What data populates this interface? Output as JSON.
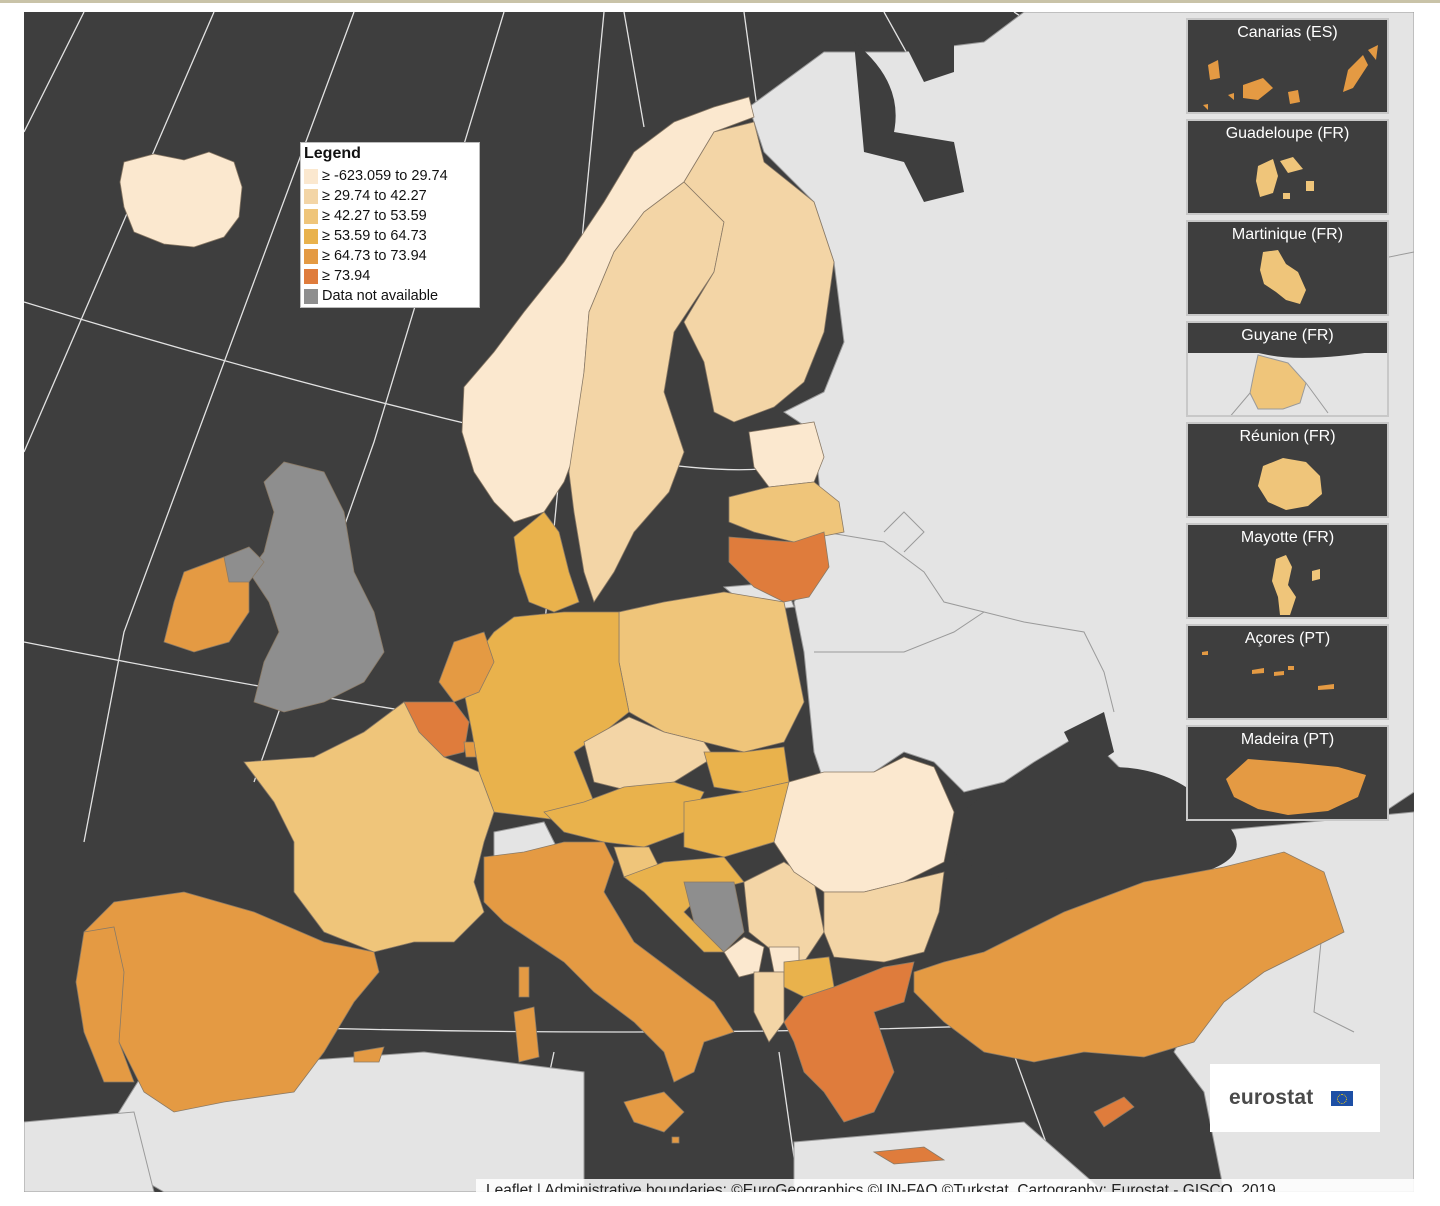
{
  "legend": {
    "title": "Legend",
    "items": [
      {
        "label": "≥ -623.059 to 29.74",
        "color": "#fbe8cf"
      },
      {
        "label": "≥ 29.74 to 42.27",
        "color": "#f3d5a6"
      },
      {
        "label": "≥ 42.27 to 53.59",
        "color": "#efc57a"
      },
      {
        "label": "≥ 53.59 to 64.73",
        "color": "#e9b24c"
      },
      {
        "label": "≥ 64.73 to 73.94",
        "color": "#e49a43"
      },
      {
        "label": "≥ 73.94",
        "color": "#df7c3c"
      },
      {
        "label": "Data not available",
        "color": "#8e8e8e"
      }
    ]
  },
  "colors": {
    "sea": "#3e3e3e",
    "non_member_land": "#e4e4e4",
    "graticule": "#ffffff",
    "border": "#7a7a7a"
  },
  "insets": [
    {
      "label": "Canarias (ES)",
      "class": "64.73-73.94"
    },
    {
      "label": "Guadeloupe (FR)",
      "class": "42.27-53.59"
    },
    {
      "label": "Martinique (FR)",
      "class": "42.27-53.59"
    },
    {
      "label": "Guyane (FR)",
      "class": "42.27-53.59"
    },
    {
      "label": "Réunion (FR)",
      "class": "42.27-53.59"
    },
    {
      "label": "Mayotte (FR)",
      "class": "42.27-53.59"
    },
    {
      "label": "Açores (PT)",
      "class": "64.73-73.94"
    },
    {
      "label": "Madeira (PT)",
      "class": "64.73-73.94"
    }
  ],
  "logo": {
    "text": "eurostat"
  },
  "attribution": "Leaflet | Administrative boundaries: ©EuroGeographics ©UN-FAO ©Turkstat, Cartography: Eurostat - GISCO, 2019"
}
